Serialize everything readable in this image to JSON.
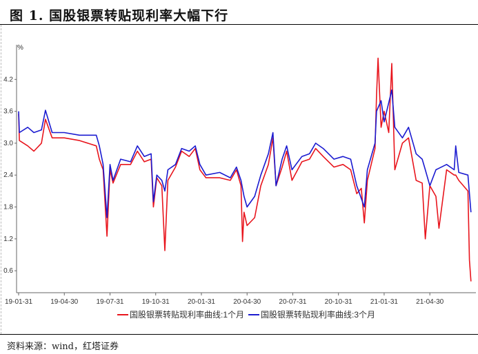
{
  "header": {
    "title": "图 1. 国股银票转贴现利率大幅下行"
  },
  "footer": {
    "source": "资料来源：wind，红塔证券"
  },
  "chart_data": {
    "type": "line",
    "title": "国股银票转贴现利率大幅下行",
    "xlabel": "",
    "ylabel": "%",
    "x_unit": "months since 2019-01-31",
    "xlim": [
      0,
      29.8
    ],
    "ylim": [
      0.2,
      4.8
    ],
    "yticks": [
      0.6,
      1.2,
      1.8,
      2.4,
      3.0,
      3.6,
      4.2
    ],
    "ytick_labels": [
      "0.6",
      "1.2",
      "1.8",
      "2.4",
      "3.0",
      "3.6",
      "4.2"
    ],
    "xticks": [
      0,
      3,
      6,
      9,
      12,
      15,
      18,
      21,
      24,
      27
    ],
    "xtick_labels": [
      "19-01-31",
      "19-04-30",
      "19-07-31",
      "19-10-31",
      "20-01-31",
      "20-04-30",
      "20-07-31",
      "20-10-31",
      "21-01-31",
      "21-04-30"
    ],
    "grid": false,
    "legend": "bottom",
    "series": [
      {
        "name": "国股银票转贴现利率曲线:1个月",
        "color": "#e8141c",
        "points": [
          [
            0,
            3.55
          ],
          [
            0.05,
            3.05
          ],
          [
            0.6,
            2.95
          ],
          [
            1.0,
            2.85
          ],
          [
            1.5,
            3.0
          ],
          [
            1.76,
            3.45
          ],
          [
            2.2,
            3.1
          ],
          [
            3,
            3.1
          ],
          [
            4,
            3.05
          ],
          [
            5.1,
            2.95
          ],
          [
            5.3,
            2.7
          ],
          [
            5.55,
            2.5
          ],
          [
            5.8,
            1.25
          ],
          [
            6.0,
            2.5
          ],
          [
            6.2,
            2.25
          ],
          [
            6.7,
            2.6
          ],
          [
            7.35,
            2.6
          ],
          [
            7.8,
            2.85
          ],
          [
            8.25,
            2.65
          ],
          [
            8.7,
            2.7
          ],
          [
            8.85,
            1.8
          ],
          [
            9.07,
            2.35
          ],
          [
            9.4,
            2.2
          ],
          [
            9.6,
            0.98
          ],
          [
            9.8,
            2.3
          ],
          [
            10.3,
            2.55
          ],
          [
            10.7,
            2.85
          ],
          [
            11.2,
            2.75
          ],
          [
            11.6,
            2.9
          ],
          [
            11.9,
            2.5
          ],
          [
            12.3,
            2.35
          ],
          [
            13.2,
            2.35
          ],
          [
            13.9,
            2.3
          ],
          [
            14.3,
            2.5
          ],
          [
            14.6,
            2.2
          ],
          [
            14.7,
            1.15
          ],
          [
            14.8,
            1.7
          ],
          [
            15.0,
            1.45
          ],
          [
            15.5,
            1.6
          ],
          [
            15.9,
            2.2
          ],
          [
            16.4,
            2.6
          ],
          [
            16.7,
            3.1
          ],
          [
            16.9,
            2.2
          ],
          [
            17.3,
            2.55
          ],
          [
            17.6,
            2.85
          ],
          [
            17.95,
            2.3
          ],
          [
            18.6,
            2.65
          ],
          [
            19.1,
            2.7
          ],
          [
            19.5,
            2.9
          ],
          [
            20.0,
            2.75
          ],
          [
            20.7,
            2.55
          ],
          [
            21.3,
            2.6
          ],
          [
            21.8,
            2.5
          ],
          [
            22.2,
            2.05
          ],
          [
            22.5,
            2.15
          ],
          [
            22.7,
            1.5
          ],
          [
            22.9,
            2.3
          ],
          [
            23.4,
            2.9
          ],
          [
            23.5,
            3.9
          ],
          [
            23.6,
            4.6
          ],
          [
            23.8,
            3.3
          ],
          [
            24.0,
            3.6
          ],
          [
            24.3,
            3.2
          ],
          [
            24.5,
            4.5
          ],
          [
            24.7,
            2.5
          ],
          [
            25.2,
            3.0
          ],
          [
            25.6,
            3.1
          ],
          [
            26.1,
            2.3
          ],
          [
            26.5,
            2.25
          ],
          [
            26.7,
            1.2
          ],
          [
            27.0,
            2.2
          ],
          [
            27.4,
            2.0
          ],
          [
            27.6,
            1.4
          ],
          [
            28.1,
            2.5
          ],
          [
            28.6,
            2.4
          ],
          [
            28.7,
            2.4
          ],
          [
            28.9,
            2.3
          ],
          [
            29.5,
            2.1
          ],
          [
            29.6,
            0.8
          ],
          [
            29.7,
            0.4
          ]
        ]
      },
      {
        "name": "国股银票转贴现利率曲线:3个月",
        "color": "#1a1ad0",
        "points": [
          [
            0,
            3.6
          ],
          [
            0.05,
            3.2
          ],
          [
            0.6,
            3.3
          ],
          [
            1.0,
            3.2
          ],
          [
            1.5,
            3.25
          ],
          [
            1.76,
            3.62
          ],
          [
            2.2,
            3.2
          ],
          [
            3,
            3.2
          ],
          [
            4,
            3.15
          ],
          [
            5.1,
            3.15
          ],
          [
            5.3,
            2.95
          ],
          [
            5.55,
            2.6
          ],
          [
            5.8,
            1.6
          ],
          [
            6.0,
            2.6
          ],
          [
            6.2,
            2.3
          ],
          [
            6.7,
            2.7
          ],
          [
            7.35,
            2.65
          ],
          [
            7.8,
            2.95
          ],
          [
            8.25,
            2.75
          ],
          [
            8.7,
            2.8
          ],
          [
            8.85,
            1.9
          ],
          [
            9.07,
            2.4
          ],
          [
            9.4,
            2.3
          ],
          [
            9.6,
            2.1
          ],
          [
            9.8,
            2.5
          ],
          [
            10.3,
            2.6
          ],
          [
            10.7,
            2.9
          ],
          [
            11.2,
            2.85
          ],
          [
            11.6,
            2.95
          ],
          [
            11.9,
            2.6
          ],
          [
            12.3,
            2.4
          ],
          [
            13.2,
            2.45
          ],
          [
            13.9,
            2.35
          ],
          [
            14.3,
            2.55
          ],
          [
            14.6,
            2.3
          ],
          [
            14.8,
            2.0
          ],
          [
            15.0,
            1.8
          ],
          [
            15.5,
            2.0
          ],
          [
            15.9,
            2.4
          ],
          [
            16.4,
            2.8
          ],
          [
            16.7,
            3.2
          ],
          [
            16.9,
            2.2
          ],
          [
            17.3,
            2.7
          ],
          [
            17.6,
            2.95
          ],
          [
            17.95,
            2.5
          ],
          [
            18.6,
            2.75
          ],
          [
            19.1,
            2.8
          ],
          [
            19.5,
            3.0
          ],
          [
            20.0,
            2.9
          ],
          [
            20.7,
            2.7
          ],
          [
            21.3,
            2.75
          ],
          [
            21.8,
            2.7
          ],
          [
            22.2,
            2.2
          ],
          [
            22.7,
            1.8
          ],
          [
            22.9,
            2.5
          ],
          [
            23.4,
            3.0
          ],
          [
            23.5,
            3.6
          ],
          [
            23.8,
            3.8
          ],
          [
            24.0,
            3.4
          ],
          [
            24.5,
            4.0
          ],
          [
            24.7,
            3.3
          ],
          [
            25.2,
            3.1
          ],
          [
            25.6,
            3.3
          ],
          [
            26.1,
            2.8
          ],
          [
            26.5,
            2.7
          ],
          [
            26.7,
            2.5
          ],
          [
            27.0,
            2.2
          ],
          [
            27.4,
            2.5
          ],
          [
            28.1,
            2.6
          ],
          [
            28.6,
            2.5
          ],
          [
            28.7,
            2.95
          ],
          [
            28.9,
            2.45
          ],
          [
            29.5,
            2.4
          ],
          [
            29.7,
            1.7
          ]
        ]
      }
    ]
  }
}
